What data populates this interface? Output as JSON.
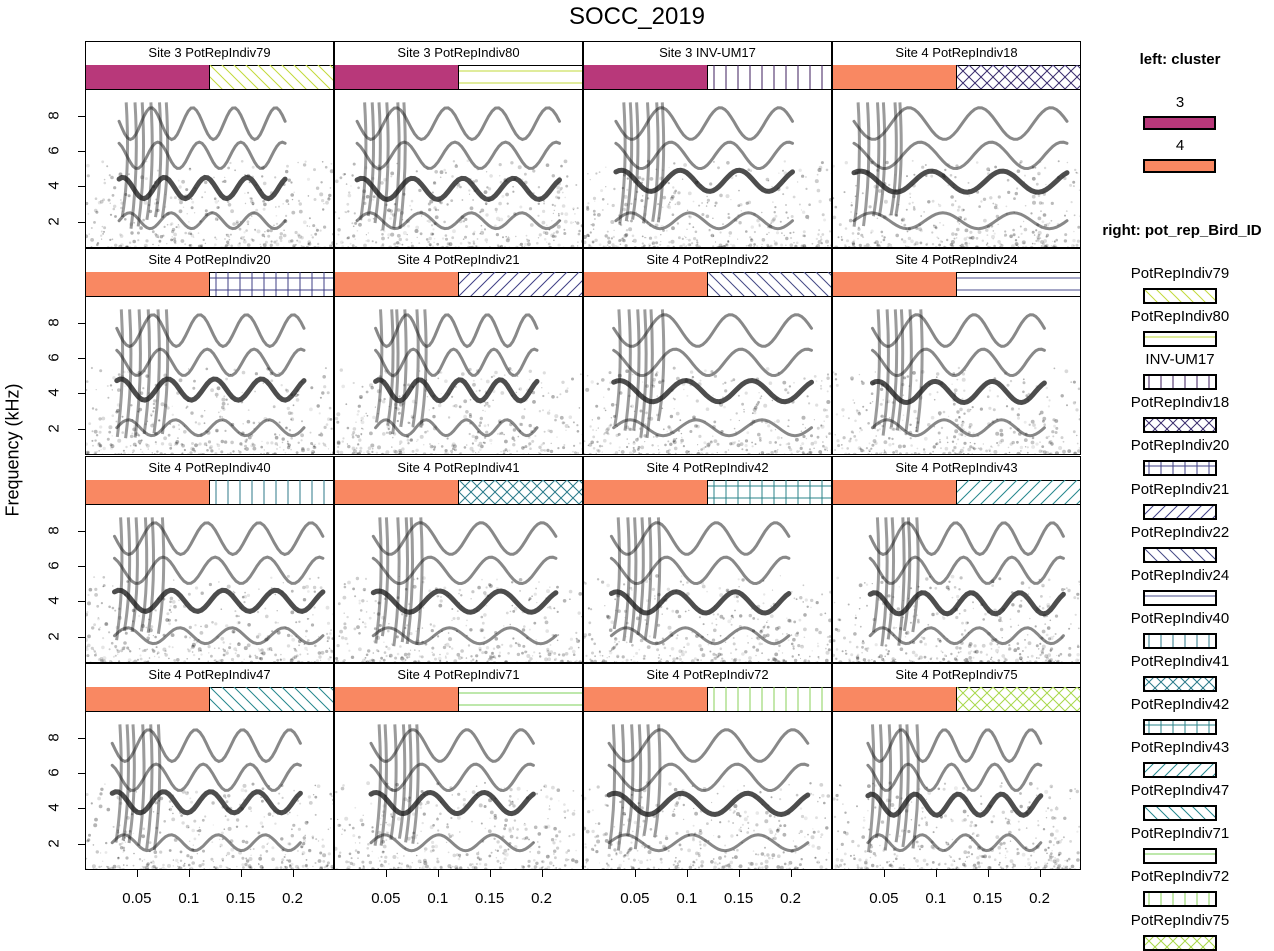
{
  "title": "SOCC_2019",
  "ylabel": "Frequency (kHz)",
  "colors": {
    "cluster3": "#B8387A",
    "cluster4": "#F98862"
  },
  "chart_data": {
    "type": "heatmap",
    "title": "SOCC_2019",
    "xlabel": "",
    "ylabel": "Frequency (kHz)",
    "x_ticks": [
      "0.05",
      "0.1",
      "0.15",
      "0.2"
    ],
    "y_ticks": [
      "2",
      "4",
      "6",
      "8"
    ],
    "xlim": [
      0,
      0.24
    ],
    "ylim": [
      0.5,
      9.5
    ],
    "panels": [
      {
        "label": "Site 3 PotRepIndiv79",
        "cluster": "3",
        "bird": "PotRepIndiv79"
      },
      {
        "label": "Site 3 PotRepIndiv80",
        "cluster": "3",
        "bird": "PotRepIndiv80"
      },
      {
        "label": "Site 3 INV-UM17",
        "cluster": "3",
        "bird": "INV-UM17"
      },
      {
        "label": "Site 4 PotRepIndiv18",
        "cluster": "4",
        "bird": "PotRepIndiv18"
      },
      {
        "label": "Site 4 PotRepIndiv20",
        "cluster": "4",
        "bird": "PotRepIndiv20"
      },
      {
        "label": "Site 4 PotRepIndiv21",
        "cluster": "4",
        "bird": "PotRepIndiv21"
      },
      {
        "label": "Site 4 PotRepIndiv22",
        "cluster": "4",
        "bird": "PotRepIndiv22"
      },
      {
        "label": "Site 4 PotRepIndiv24",
        "cluster": "4",
        "bird": "PotRepIndiv24"
      },
      {
        "label": "Site 4 PotRepIndiv40",
        "cluster": "4",
        "bird": "PotRepIndiv40"
      },
      {
        "label": "Site 4 PotRepIndiv41",
        "cluster": "4",
        "bird": "PotRepIndiv41"
      },
      {
        "label": "Site 4 PotRepIndiv42",
        "cluster": "4",
        "bird": "PotRepIndiv42"
      },
      {
        "label": "Site 4 PotRepIndiv43",
        "cluster": "4",
        "bird": "PotRepIndiv43"
      },
      {
        "label": "Site 4 PotRepIndiv47",
        "cluster": "4",
        "bird": "PotRepIndiv47"
      },
      {
        "label": "Site 4 PotRepIndiv71",
        "cluster": "4",
        "bird": "PotRepIndiv71"
      },
      {
        "label": "Site 4 PotRepIndiv72",
        "cluster": "4",
        "bird": "PotRepIndiv72"
      },
      {
        "label": "Site 4 PotRepIndiv75",
        "cluster": "4",
        "bird": "PotRepIndiv75"
      }
    ]
  },
  "legend": {
    "left_title": "left: cluster",
    "clusters": [
      {
        "label": "3",
        "color": "#B8387A"
      },
      {
        "label": "4",
        "color": "#F98862"
      }
    ],
    "right_title": "right: pot_rep_Bird_ID",
    "birds": [
      {
        "label": "PotRepIndiv79",
        "color": "#C2D93A",
        "pattern": "diag-down"
      },
      {
        "label": "PotRepIndiv80",
        "color": "#C2D93A",
        "pattern": "horizontal"
      },
      {
        "label": "INV-UM17",
        "color": "#3E1E5E",
        "pattern": "vertical"
      },
      {
        "label": "PotRepIndiv18",
        "color": "#3B2D6E",
        "pattern": "cross"
      },
      {
        "label": "PotRepIndiv20",
        "color": "#3F3F85",
        "pattern": "grid"
      },
      {
        "label": "PotRepIndiv21",
        "color": "#3F3F85",
        "pattern": "diag-up"
      },
      {
        "label": "PotRepIndiv22",
        "color": "#444985",
        "pattern": "diag-down"
      },
      {
        "label": "PotRepIndiv24",
        "color": "#4A4E8C",
        "pattern": "horizontal"
      },
      {
        "label": "PotRepIndiv40",
        "color": "#2E7A8A",
        "pattern": "vertical"
      },
      {
        "label": "PotRepIndiv41",
        "color": "#2A7A8A",
        "pattern": "cross"
      },
      {
        "label": "PotRepIndiv42",
        "color": "#2A838A",
        "pattern": "grid"
      },
      {
        "label": "PotRepIndiv43",
        "color": "#24868C",
        "pattern": "diag-up"
      },
      {
        "label": "PotRepIndiv47",
        "color": "#24868C",
        "pattern": "diag-down"
      },
      {
        "label": "PotRepIndiv71",
        "color": "#7ED05A",
        "pattern": "horizontal"
      },
      {
        "label": "PotRepIndiv72",
        "color": "#8AD25A",
        "pattern": "vertical"
      },
      {
        "label": "PotRepIndiv75",
        "color": "#A8D84A",
        "pattern": "cross"
      }
    ]
  }
}
